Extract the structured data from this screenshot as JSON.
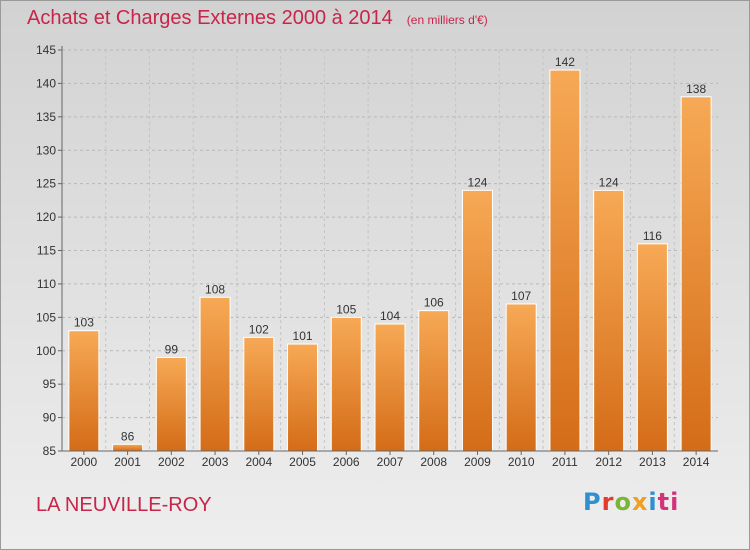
{
  "header": {
    "title": "Achats et Charges Externes 2000 à 2014",
    "subtitle": "(en milliers d'€)"
  },
  "footer": {
    "place_name": "LA NEUVILLE-ROY",
    "logo_text": "Proxiti"
  },
  "colors": {
    "title": "#c8254a",
    "bar_light": "#f7a955",
    "bar_dark": "#d46c18"
  },
  "chart_data": {
    "type": "bar",
    "title": "Achats et Charges Externes 2000 à 2014",
    "subtitle": "(en milliers d'€)",
    "categories": [
      "2000",
      "2001",
      "2002",
      "2003",
      "2004",
      "2005",
      "2006",
      "2007",
      "2008",
      "2009",
      "2010",
      "2011",
      "2012",
      "2013",
      "2014"
    ],
    "values": [
      103,
      86,
      99,
      108,
      102,
      101,
      105,
      104,
      106,
      124,
      107,
      142,
      124,
      116,
      138
    ],
    "ylim": [
      85,
      145
    ],
    "yticks": [
      85,
      90,
      95,
      100,
      105,
      110,
      115,
      120,
      125,
      130,
      135,
      140,
      145
    ],
    "grid": "horizontal-dashed",
    "data_labels": true
  }
}
